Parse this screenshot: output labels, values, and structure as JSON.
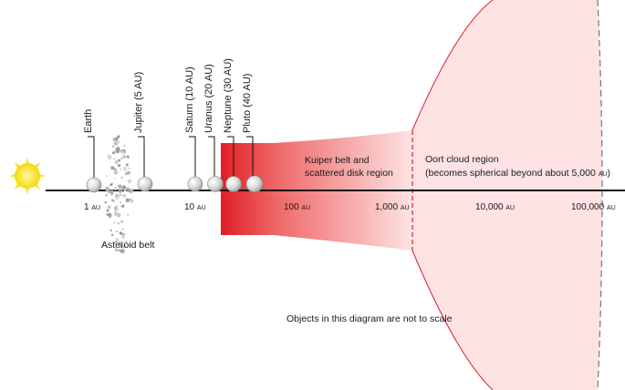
{
  "planets": [
    {
      "name": "Earth",
      "label": "Earth"
    },
    {
      "name": "Jupiter",
      "label": "Jupiter (5 AU)"
    },
    {
      "name": "Saturn",
      "label": "Saturn (10 AU)"
    },
    {
      "name": "Uranus",
      "label": "Uranus (20 AU)"
    },
    {
      "name": "Neptune",
      "label": "Neptune (30 AU)"
    },
    {
      "name": "Pluto",
      "label": "Pluto (40 AU)"
    }
  ],
  "axis": {
    "ticks": [
      {
        "value": "1",
        "unit": "AU"
      },
      {
        "value": "10",
        "unit": "AU"
      },
      {
        "value": "100",
        "unit": "AU"
      },
      {
        "value": "1,000",
        "unit": "AU"
      },
      {
        "value": "10,000",
        "unit": "AU"
      },
      {
        "value": "100,000",
        "unit": "AU"
      }
    ]
  },
  "regions": {
    "asteroid_belt": "Asteroid belt",
    "kuiper_line1": "Kuiper belt and",
    "kuiper_line2": "scattered disk region",
    "oort_line1": "Oort cloud region",
    "oort_line2_pre": "(becomes spherical beyond about 5,000",
    "oort_line2_unit": "AU",
    "oort_line2_post": ")"
  },
  "note": "Objects in this diagram are not to scale",
  "colors": {
    "sun": "#f7e21a",
    "kuiper": "#e01e25",
    "oort_fill": "#fde3e3",
    "oort_edge": "#e01e25",
    "planet": "#d9d9d9",
    "axis": "#111111"
  }
}
